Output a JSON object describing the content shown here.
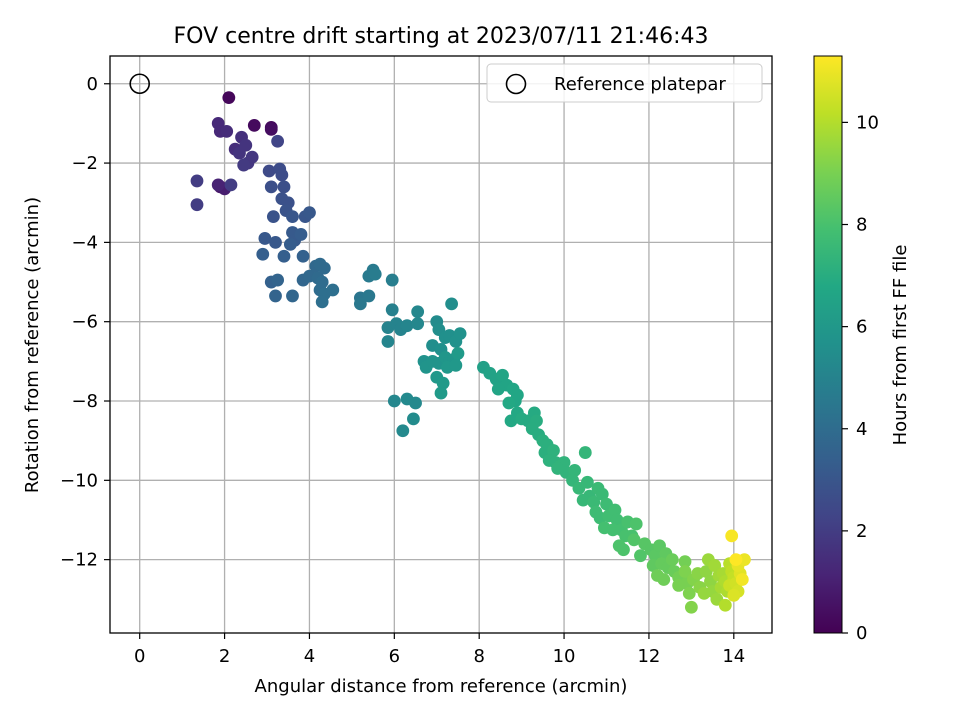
{
  "chart_data": {
    "type": "scatter",
    "title": "FOV centre drift starting at 2023/07/11 21:46:43",
    "xlabel": "Angular distance from reference (arcmin)",
    "ylabel": "Rotation from reference (arcmin)",
    "xlim": [
      -0.7,
      14.9
    ],
    "ylim": [
      -13.85,
      0.7
    ],
    "x_ticks": [
      0,
      2,
      4,
      6,
      8,
      10,
      12,
      14
    ],
    "y_ticks": [
      0,
      -2,
      -4,
      -6,
      -8,
      -10,
      -12
    ],
    "x_tick_labels": [
      "0",
      "2",
      "4",
      "6",
      "8",
      "10",
      "12",
      "14"
    ],
    "y_tick_labels": [
      "0",
      "−2",
      "−4",
      "−6",
      "−8",
      "−10",
      "−12"
    ],
    "grid": true,
    "legend": {
      "position": "upper-right",
      "label": "Reference platepar"
    },
    "reference_point": {
      "x": 0,
      "y": 0
    },
    "colorbar": {
      "label": "Hours from first FF file",
      "range": [
        0,
        11.3
      ],
      "ticks": [
        0,
        2,
        4,
        6,
        8,
        10
      ],
      "tick_labels": [
        "0",
        "2",
        "4",
        "6",
        "8",
        "10"
      ],
      "colormap": "viridis"
    },
    "series": [
      {
        "points": [
          [
            2.1,
            -0.35,
            0.2
          ],
          [
            2.7,
            -1.05,
            0.3
          ],
          [
            3.1,
            -1.1,
            0.3
          ],
          [
            3.1,
            -1.15,
            0.4
          ],
          [
            1.9,
            -2.6,
            0.6
          ],
          [
            2.0,
            -2.65,
            0.9
          ],
          [
            1.85,
            -1.0,
            1.3
          ],
          [
            1.9,
            -1.2,
            1.3
          ],
          [
            2.05,
            -1.2,
            1.4
          ],
          [
            2.25,
            -1.65,
            1.5
          ],
          [
            2.4,
            -1.35,
            1.6
          ],
          [
            2.35,
            -1.75,
            1.7
          ],
          [
            2.5,
            -1.55,
            1.7
          ],
          [
            2.55,
            -2.0,
            1.8
          ],
          [
            2.65,
            -1.85,
            1.8
          ],
          [
            2.45,
            -2.05,
            1.9
          ],
          [
            1.35,
            -2.45,
            2.0
          ],
          [
            1.35,
            -3.05,
            2.0
          ],
          [
            2.15,
            -2.55,
            2.0
          ],
          [
            1.85,
            -2.55,
            1.1
          ],
          [
            3.25,
            -1.45,
            2.3
          ],
          [
            3.05,
            -2.2,
            2.5
          ],
          [
            3.3,
            -2.15,
            2.6
          ],
          [
            3.35,
            -2.3,
            2.6
          ],
          [
            3.1,
            -2.6,
            2.7
          ],
          [
            3.4,
            -2.6,
            2.7
          ],
          [
            3.35,
            -2.9,
            2.8
          ],
          [
            3.5,
            -3.0,
            2.8
          ],
          [
            3.15,
            -3.35,
            2.9
          ],
          [
            3.45,
            -3.2,
            2.9
          ],
          [
            3.6,
            -3.35,
            3.0
          ],
          [
            3.9,
            -3.35,
            3.0
          ],
          [
            4.0,
            -3.25,
            3.1
          ],
          [
            2.95,
            -3.9,
            3.1
          ],
          [
            3.2,
            -4.0,
            3.1
          ],
          [
            3.6,
            -3.75,
            3.2
          ],
          [
            3.65,
            -3.95,
            3.2
          ],
          [
            3.55,
            -4.05,
            3.3
          ],
          [
            3.8,
            -3.8,
            3.3
          ],
          [
            2.9,
            -4.3,
            3.4
          ],
          [
            3.4,
            -4.35,
            3.4
          ],
          [
            3.85,
            -4.35,
            3.5
          ],
          [
            3.1,
            -5.0,
            3.5
          ],
          [
            3.25,
            -4.95,
            3.6
          ],
          [
            3.2,
            -5.35,
            3.6
          ],
          [
            3.6,
            -5.35,
            3.7
          ],
          [
            3.85,
            -4.95,
            3.7
          ],
          [
            4.0,
            -4.85,
            3.8
          ],
          [
            4.15,
            -4.6,
            3.8
          ],
          [
            4.25,
            -4.55,
            3.9
          ],
          [
            4.35,
            -4.65,
            3.9
          ],
          [
            4.2,
            -4.9,
            3.9
          ],
          [
            4.3,
            -5.0,
            4.0
          ],
          [
            4.25,
            -5.2,
            4.0
          ],
          [
            4.35,
            -5.3,
            4.1
          ],
          [
            4.55,
            -5.2,
            4.1
          ],
          [
            4.3,
            -5.5,
            4.1
          ],
          [
            5.2,
            -5.4,
            4.4
          ],
          [
            5.4,
            -5.35,
            4.5
          ],
          [
            5.2,
            -5.55,
            4.5
          ],
          [
            5.4,
            -4.85,
            4.6
          ],
          [
            5.5,
            -4.7,
            4.6
          ],
          [
            5.55,
            -4.8,
            4.7
          ],
          [
            5.95,
            -4.95,
            4.8
          ],
          [
            5.95,
            -5.7,
            4.9
          ],
          [
            5.85,
            -6.15,
            5.0
          ],
          [
            6.05,
            -6.05,
            5.0
          ],
          [
            6.15,
            -6.2,
            5.0
          ],
          [
            5.85,
            -6.5,
            5.1
          ],
          [
            6.3,
            -6.1,
            5.1
          ],
          [
            6.55,
            -5.75,
            5.2
          ],
          [
            6.55,
            -6.05,
            5.2
          ],
          [
            6.0,
            -8.0,
            5.2
          ],
          [
            6.3,
            -7.95,
            5.3
          ],
          [
            6.5,
            -8.05,
            5.3
          ],
          [
            6.2,
            -8.75,
            5.3
          ],
          [
            6.45,
            -8.45,
            5.4
          ],
          [
            7.0,
            -6.0,
            5.4
          ],
          [
            7.05,
            -6.2,
            5.5
          ],
          [
            7.35,
            -5.55,
            5.5
          ],
          [
            6.9,
            -6.6,
            5.5
          ],
          [
            7.1,
            -6.7,
            5.6
          ],
          [
            7.2,
            -6.4,
            5.6
          ],
          [
            7.3,
            -6.35,
            5.6
          ],
          [
            7.45,
            -6.5,
            5.7
          ],
          [
            7.55,
            -6.3,
            5.7
          ],
          [
            6.7,
            -7.0,
            5.7
          ],
          [
            6.75,
            -7.15,
            5.8
          ],
          [
            6.9,
            -7.0,
            5.8
          ],
          [
            7.05,
            -7.05,
            5.8
          ],
          [
            7.2,
            -6.9,
            5.9
          ],
          [
            7.3,
            -7.0,
            5.9
          ],
          [
            7.4,
            -6.95,
            5.9
          ],
          [
            7.25,
            -7.15,
            6.0
          ],
          [
            7.45,
            -7.1,
            6.0
          ],
          [
            7.0,
            -7.4,
            6.0
          ],
          [
            7.15,
            -7.55,
            6.1
          ],
          [
            7.1,
            -7.8,
            6.1
          ],
          [
            7.5,
            -6.8,
            6.1
          ],
          [
            8.1,
            -7.15,
            6.4
          ],
          [
            8.25,
            -7.3,
            6.5
          ],
          [
            8.4,
            -7.45,
            6.5
          ],
          [
            8.55,
            -7.35,
            6.6
          ],
          [
            8.65,
            -7.6,
            6.6
          ],
          [
            8.45,
            -7.7,
            6.6
          ],
          [
            8.8,
            -7.7,
            6.7
          ],
          [
            8.9,
            -7.85,
            6.7
          ],
          [
            8.85,
            -8.0,
            6.7
          ],
          [
            8.7,
            -8.05,
            6.8
          ],
          [
            8.9,
            -8.3,
            6.8
          ],
          [
            8.75,
            -8.5,
            6.8
          ],
          [
            9.0,
            -8.45,
            6.9
          ],
          [
            9.15,
            -8.5,
            6.9
          ],
          [
            9.3,
            -8.3,
            6.9
          ],
          [
            9.35,
            -8.5,
            7.0
          ],
          [
            9.25,
            -8.7,
            7.0
          ],
          [
            9.4,
            -8.85,
            7.0
          ],
          [
            9.5,
            -9.0,
            7.1
          ],
          [
            9.6,
            -9.1,
            7.1
          ],
          [
            9.55,
            -9.3,
            7.1
          ],
          [
            9.75,
            -9.25,
            7.2
          ],
          [
            9.65,
            -9.5,
            7.2
          ],
          [
            9.8,
            -9.55,
            7.2
          ],
          [
            9.9,
            -9.65,
            7.3
          ],
          [
            10.0,
            -9.55,
            7.3
          ],
          [
            10.05,
            -9.8,
            7.3
          ],
          [
            9.85,
            -9.7,
            7.3
          ],
          [
            10.25,
            -9.75,
            7.4
          ],
          [
            10.5,
            -9.3,
            7.4
          ],
          [
            10.2,
            -10.0,
            7.4
          ],
          [
            10.35,
            -10.2,
            7.5
          ],
          [
            10.55,
            -10.05,
            7.5
          ],
          [
            10.6,
            -10.4,
            7.5
          ],
          [
            10.45,
            -10.5,
            7.5
          ],
          [
            10.7,
            -10.55,
            7.6
          ],
          [
            10.8,
            -10.2,
            7.6
          ],
          [
            10.9,
            -10.35,
            7.6
          ],
          [
            11.0,
            -10.6,
            7.7
          ],
          [
            10.75,
            -10.8,
            7.7
          ],
          [
            10.85,
            -10.95,
            7.7
          ],
          [
            11.05,
            -10.9,
            7.8
          ],
          [
            11.2,
            -10.75,
            7.8
          ],
          [
            11.25,
            -11.0,
            7.8
          ],
          [
            10.95,
            -11.2,
            7.9
          ],
          [
            11.15,
            -11.25,
            7.9
          ],
          [
            11.35,
            -11.25,
            7.9
          ],
          [
            11.45,
            -11.4,
            8.0
          ],
          [
            11.6,
            -11.4,
            8.0
          ],
          [
            11.5,
            -11.05,
            8.0
          ],
          [
            11.7,
            -11.1,
            8.1
          ],
          [
            11.3,
            -11.65,
            8.1
          ],
          [
            11.4,
            -11.75,
            8.1
          ],
          [
            11.65,
            -11.5,
            8.2
          ],
          [
            11.8,
            -11.9,
            8.2
          ],
          [
            11.9,
            -11.6,
            8.3
          ],
          [
            12.05,
            -11.75,
            8.3
          ],
          [
            12.15,
            -11.9,
            8.4
          ],
          [
            12.25,
            -11.65,
            8.4
          ],
          [
            12.4,
            -11.85,
            8.5
          ],
          [
            12.1,
            -12.15,
            8.5
          ],
          [
            12.3,
            -12.1,
            8.6
          ],
          [
            12.45,
            -12.2,
            8.6
          ],
          [
            12.55,
            -12.0,
            8.7
          ],
          [
            12.6,
            -12.3,
            8.7
          ],
          [
            12.2,
            -12.4,
            8.8
          ],
          [
            12.35,
            -12.5,
            8.8
          ],
          [
            12.7,
            -12.45,
            8.9
          ],
          [
            12.85,
            -12.05,
            8.9
          ],
          [
            12.7,
            -12.65,
            9.0
          ],
          [
            12.9,
            -12.6,
            9.0
          ],
          [
            12.95,
            -12.85,
            9.1
          ],
          [
            12.85,
            -12.3,
            9.1
          ],
          [
            13.05,
            -12.5,
            9.2
          ],
          [
            13.0,
            -13.2,
            9.2
          ],
          [
            13.15,
            -12.35,
            9.3
          ],
          [
            13.2,
            -12.7,
            9.3
          ],
          [
            13.35,
            -12.3,
            9.4
          ],
          [
            13.45,
            -12.55,
            9.4
          ],
          [
            13.3,
            -12.85,
            9.5
          ],
          [
            13.5,
            -12.8,
            9.5
          ],
          [
            13.6,
            -13.0,
            9.6
          ],
          [
            13.4,
            -12.0,
            9.6
          ],
          [
            13.55,
            -12.15,
            9.7
          ],
          [
            13.65,
            -12.4,
            9.7
          ],
          [
            13.75,
            -12.35,
            9.8
          ],
          [
            13.7,
            -12.7,
            9.8
          ],
          [
            13.8,
            -12.55,
            9.9
          ],
          [
            13.85,
            -12.8,
            9.9
          ],
          [
            13.8,
            -13.15,
            10.0
          ],
          [
            13.9,
            -12.1,
            10.1
          ],
          [
            13.95,
            -12.3,
            10.2
          ],
          [
            14.0,
            -12.45,
            10.3
          ],
          [
            13.9,
            -12.65,
            10.4
          ],
          [
            14.05,
            -12.6,
            10.5
          ],
          [
            14.1,
            -12.8,
            10.6
          ],
          [
            14.0,
            -12.9,
            10.7
          ],
          [
            14.15,
            -12.35,
            10.8
          ],
          [
            14.1,
            -12.15,
            10.9
          ],
          [
            14.25,
            -12.0,
            11.0
          ],
          [
            14.2,
            -12.5,
            11.1
          ],
          [
            13.95,
            -11.4,
            11.2
          ],
          [
            14.05,
            -12.0,
            11.3
          ]
        ]
      }
    ]
  }
}
